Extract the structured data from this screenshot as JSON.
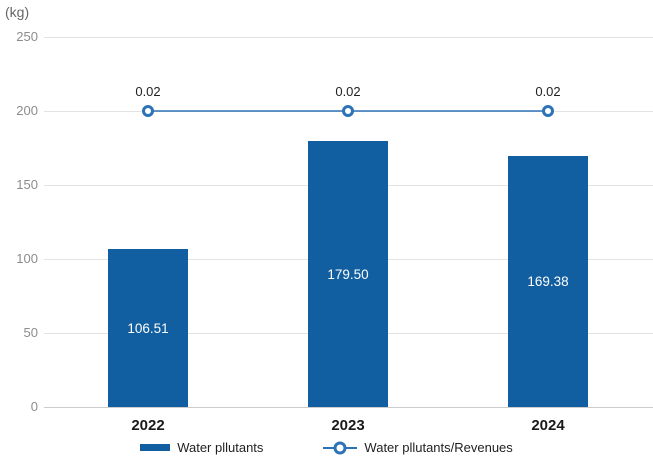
{
  "chart_data": {
    "type": "bar+line",
    "title": "",
    "unit_label": "(kg)",
    "categories": [
      "2022",
      "2023",
      "2024"
    ],
    "series": [
      {
        "name": "Water pllutants",
        "type": "bar",
        "values": [
          106.51,
          179.5,
          169.38
        ],
        "value_labels": [
          "106.51",
          "179.50",
          "169.38"
        ]
      },
      {
        "name": "Water pllutants/Revenues",
        "type": "line",
        "values": [
          0.02,
          0.02,
          0.02
        ],
        "value_labels": [
          "0.02",
          "0.02",
          "0.02"
        ],
        "plotted_at_left_axis_level": 200
      }
    ],
    "ylim": [
      0,
      250
    ],
    "y_ticks": [
      "0",
      "50",
      "100",
      "150",
      "200",
      "250"
    ],
    "grid": true,
    "legend_position": "bottom",
    "colors": {
      "bar": "#115ea0",
      "line": "#2e73b8",
      "marker_fill": "#ffffff",
      "gridline": "#e2e2e2",
      "baseline": "#cccccc",
      "axis_text": "#8c8c8c",
      "label_text": "#1f1f1f",
      "bar_value_text": "#ffffff"
    }
  }
}
